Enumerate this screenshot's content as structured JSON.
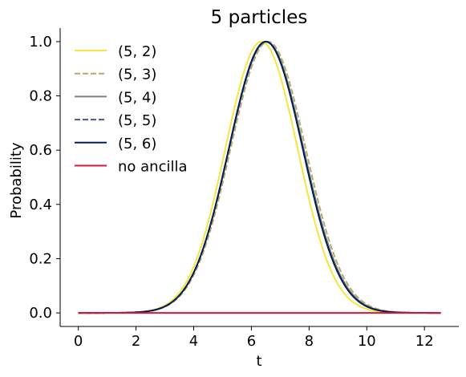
{
  "chart_data": {
    "type": "line",
    "title": "5 particles",
    "xlabel": "t",
    "ylabel": "Probability",
    "xlim": [
      -0.63,
      13.19
    ],
    "ylim": [
      -0.05,
      1.05
    ],
    "xticks": [
      0,
      2,
      4,
      6,
      8,
      10,
      12
    ],
    "yticks": [
      0.0,
      0.2,
      0.4,
      0.6,
      0.8,
      1.0
    ],
    "xtick_labels": [
      "0",
      "2",
      "4",
      "6",
      "8",
      "10",
      "12"
    ],
    "ytick_labels": [
      "0.0",
      "0.2",
      "0.4",
      "0.6",
      "0.8",
      "1.0"
    ],
    "grid": false,
    "legend": {
      "position": "upper-left",
      "frame": false
    },
    "x_range": [
      0,
      12.566
    ],
    "series": [
      {
        "name": "(5, 2)",
        "color": "#f5e53d",
        "style": "solid",
        "curve": "gaussian",
        "peak_x": 6.35,
        "peak_y": 1.0,
        "sigma": 1.25
      },
      {
        "name": "(5, 3)",
        "color": "#b8a870",
        "style": "dashed",
        "curve": "gaussian",
        "peak_x": 6.58,
        "peak_y": 1.0,
        "sigma": 1.3
      },
      {
        "name": "(5, 4)",
        "color": "#808080",
        "style": "solid",
        "curve": "gaussian",
        "peak_x": 6.52,
        "peak_y": 1.0,
        "sigma": 1.29
      },
      {
        "name": "(5, 5)",
        "color": "#4a5580",
        "style": "dashed",
        "curve": "gaussian",
        "peak_x": 6.5,
        "peak_y": 1.0,
        "sigma": 1.28
      },
      {
        "name": "(5, 6)",
        "color": "#002050",
        "style": "solid",
        "curve": "gaussian",
        "peak_x": 6.5,
        "peak_y": 1.0,
        "sigma": 1.28
      },
      {
        "name": "no ancilla",
        "color": "#dc143c",
        "style": "solid",
        "curve": "constant",
        "value": 0.0
      }
    ]
  }
}
